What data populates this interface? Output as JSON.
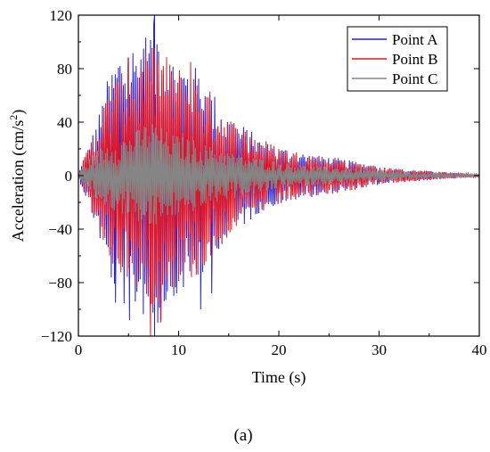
{
  "chart_data": {
    "type": "line",
    "xlabel": "Time (s)",
    "ylabel_main": "Acceleration (cm/s",
    "ylabel_sup": "2",
    "ylabel_close": ")",
    "xlim": [
      0,
      40
    ],
    "ylim": [
      -120,
      120
    ],
    "x_ticks": [
      0,
      10,
      20,
      30,
      40
    ],
    "x_tick_labels": [
      "0",
      "10",
      "20",
      "30",
      "40"
    ],
    "y_ticks": [
      -120,
      -80,
      -40,
      0,
      40,
      80,
      120
    ],
    "y_tick_labels": [
      "−120",
      "−80",
      "−40",
      "0",
      "40",
      "80",
      "120"
    ],
    "grid": false,
    "legend_position": "top-right",
    "series": [
      {
        "name": "Point A",
        "color": "#1f1fdc",
        "envelope": [
          [
            0,
            2
          ],
          [
            1,
            22
          ],
          [
            2,
            45
          ],
          [
            3,
            75
          ],
          [
            4,
            95
          ],
          [
            5,
            100
          ],
          [
            6,
            102
          ],
          [
            7,
            110
          ],
          [
            8,
            118
          ],
          [
            9,
            92
          ],
          [
            10,
            88
          ],
          [
            11,
            85
          ],
          [
            12,
            80
          ],
          [
            13,
            70
          ],
          [
            14,
            55
          ],
          [
            15,
            45
          ],
          [
            16,
            40
          ],
          [
            17,
            35
          ],
          [
            18,
            28
          ],
          [
            19,
            24
          ],
          [
            20,
            22
          ],
          [
            22,
            18
          ],
          [
            24,
            15
          ],
          [
            26,
            13
          ],
          [
            28,
            10
          ],
          [
            30,
            7
          ],
          [
            32,
            5
          ],
          [
            34,
            4
          ],
          [
            36,
            3
          ],
          [
            38,
            2
          ],
          [
            40,
            1
          ]
        ],
        "peaks": [
          [
            7.6,
            120
          ],
          [
            7.6,
            -120
          ],
          [
            3.7,
            -95
          ],
          [
            5.1,
            -108
          ],
          [
            12.2,
            -100
          ],
          [
            13.3,
            -88
          ],
          [
            9.8,
            -88
          ],
          [
            6.5,
            95
          ]
        ]
      },
      {
        "name": "Point B",
        "color": "#e8141e",
        "envelope": [
          [
            0,
            2
          ],
          [
            1,
            22
          ],
          [
            2,
            42
          ],
          [
            3,
            65
          ],
          [
            4,
            75
          ],
          [
            5,
            80
          ],
          [
            6,
            85
          ],
          [
            7,
            95
          ],
          [
            8,
            100
          ],
          [
            9,
            88
          ],
          [
            10,
            82
          ],
          [
            11,
            80
          ],
          [
            12,
            75
          ],
          [
            13,
            65
          ],
          [
            14,
            55
          ],
          [
            15,
            45
          ],
          [
            16,
            38
          ],
          [
            17,
            34
          ],
          [
            18,
            30
          ],
          [
            19,
            25
          ],
          [
            20,
            22
          ],
          [
            22,
            18
          ],
          [
            24,
            15
          ],
          [
            26,
            13
          ],
          [
            28,
            10
          ],
          [
            30,
            7
          ],
          [
            32,
            5
          ],
          [
            34,
            4
          ],
          [
            36,
            3
          ],
          [
            38,
            2
          ],
          [
            40,
            1
          ]
        ],
        "peaks": [
          [
            7.6,
            95
          ],
          [
            7.2,
            -120
          ],
          [
            8.2,
            -110
          ],
          [
            5.0,
            88
          ],
          [
            11.2,
            85
          ]
        ]
      },
      {
        "name": "Point C",
        "color": "#858585",
        "envelope": [
          [
            0,
            2
          ],
          [
            1,
            12
          ],
          [
            2,
            20
          ],
          [
            3,
            25
          ],
          [
            4,
            28
          ],
          [
            5,
            30
          ],
          [
            6,
            35
          ],
          [
            7,
            42
          ],
          [
            8,
            38
          ],
          [
            9,
            32
          ],
          [
            10,
            30
          ],
          [
            11,
            28
          ],
          [
            12,
            26
          ],
          [
            13,
            22
          ],
          [
            14,
            20
          ],
          [
            15,
            18
          ],
          [
            16,
            16
          ],
          [
            17,
            14
          ],
          [
            18,
            13
          ],
          [
            19,
            12
          ],
          [
            20,
            10
          ],
          [
            22,
            8
          ],
          [
            24,
            7
          ],
          [
            26,
            6
          ],
          [
            28,
            5
          ],
          [
            30,
            4
          ],
          [
            32,
            3
          ],
          [
            34,
            2
          ],
          [
            36,
            2
          ],
          [
            38,
            1
          ],
          [
            40,
            1
          ]
        ],
        "peaks": []
      }
    ]
  },
  "caption": "(a)"
}
